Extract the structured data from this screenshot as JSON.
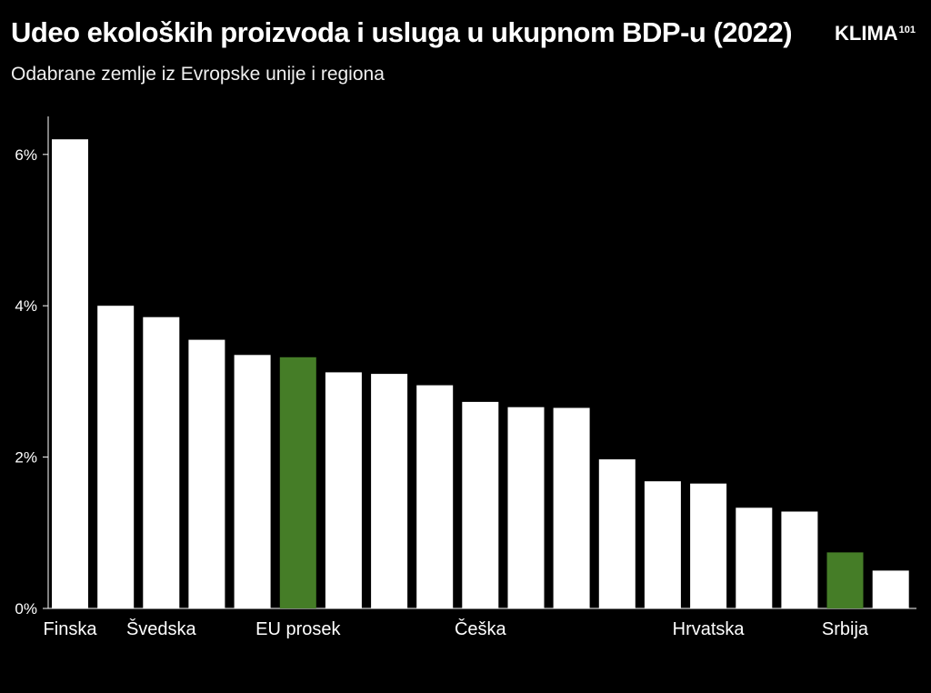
{
  "title": "Udeo ekoloških proizvoda i usluga u ukupnom BDP-u (2022)",
  "subtitle": "Odabrane zemlje iz Evropske unije i regiona",
  "logo": {
    "text": "KLIMA",
    "sup": "101"
  },
  "colors": {
    "background": "#000000",
    "bar": "#ffffff",
    "highlight": "#457d27",
    "text": "#ffffff"
  },
  "chart_data": {
    "type": "bar",
    "title": "Udeo ekoloških proizvoda i usluga u ukupnom BDP-u (2022)",
    "subtitle": "Odabrane zemlje iz Evropske unije i regiona",
    "categories": [
      "Finska",
      "",
      "Švedska",
      "",
      "",
      "EU prosek",
      "",
      "",
      "",
      "Češka",
      "",
      "",
      "",
      "",
      "Hrvatska",
      "",
      "",
      "Srbija",
      ""
    ],
    "values": [
      6.2,
      4.0,
      3.85,
      3.55,
      3.35,
      3.32,
      3.12,
      3.1,
      2.95,
      2.73,
      2.66,
      2.65,
      1.97,
      1.68,
      1.65,
      1.33,
      1.28,
      0.74,
      0.5
    ],
    "highlight_indices": [
      5,
      17
    ],
    "yticks": [
      "0%",
      "2%",
      "4%",
      "6%"
    ],
    "ytick_values": [
      0,
      2,
      4,
      6
    ],
    "ylim": [
      0,
      6.5
    ],
    "xlabel": "",
    "ylabel": "",
    "grid": false,
    "legend": "none"
  }
}
